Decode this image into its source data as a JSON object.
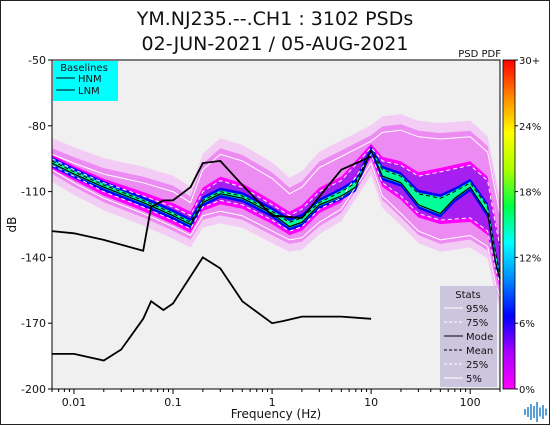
{
  "title_line1": "YM.NJ235.--.CH1 : 3102 PSDs",
  "title_line2": "02-JUN-2021 / 05-AUG-2021",
  "pdf_label": "PSD PDF",
  "colors": {
    "plot_background": "#f0f0f0",
    "baselines_box": "#00ffff",
    "stats_box": "#c8c0dc",
    "density_low": "#ff00ff",
    "density_mid": "#0000ff",
    "density_high": "#ff0000"
  },
  "baselines": {
    "title": "Baselines",
    "items": [
      "HNM",
      "LNM"
    ]
  },
  "stats": {
    "title": "Stats",
    "items": [
      "95%",
      "75%",
      "Mode",
      "Mean",
      "25%",
      "5%"
    ]
  },
  "colorbar": {
    "labels": [
      "30+",
      "24%",
      "18%",
      "12%",
      "6%",
      "0%"
    ],
    "stops": [
      "#ff00ff",
      "#aa00ff",
      "#0000ff",
      "#0088ff",
      "#00ffff",
      "#00ff44",
      "#aaff00",
      "#ffff00",
      "#ff8800",
      "#ff0000"
    ]
  },
  "chart_data": {
    "type": "line",
    "title": "YM.NJ235.--.CH1 : 3102 PSDs",
    "subtitle": "02-JUN-2021 / 05-AUG-2021",
    "xlabel": "Frequency (Hz)",
    "ylabel": "dB",
    "xscale": "log",
    "xlim": [
      0.006,
      200
    ],
    "ylim": [
      -200,
      -50
    ],
    "x_ticks": [
      0.01,
      0.1,
      1,
      10,
      100
    ],
    "x_tick_labels": [
      "0.01",
      "0.1",
      "1",
      "10",
      "100"
    ],
    "y_ticks": [
      -50,
      -80,
      -110,
      -140,
      -170,
      -200
    ],
    "y_tick_labels": [
      "-50",
      "-80",
      "-110",
      "-140",
      "-170",
      "-200"
    ],
    "grid": false,
    "legend_placement": "top-left",
    "series": [
      {
        "name": "HNM",
        "x": [
          0.006,
          0.01,
          0.02,
          0.05,
          0.06,
          0.08,
          0.1,
          0.15,
          0.2,
          0.3,
          0.5,
          1,
          2,
          5,
          10
        ],
        "y": [
          -128,
          -129,
          -132,
          -137,
          -117,
          -114,
          -114,
          -108,
          -97,
          -96,
          -107,
          -121,
          -122,
          -100,
          -94
        ]
      },
      {
        "name": "LNM",
        "x": [
          0.006,
          0.01,
          0.02,
          0.03,
          0.05,
          0.06,
          0.08,
          0.1,
          0.2,
          0.3,
          0.5,
          1,
          1.3,
          2,
          5,
          10
        ],
        "y": [
          -184,
          -184,
          -187,
          -182,
          -168,
          -160,
          -164,
          -161,
          -140,
          -145,
          -160,
          -170,
          -169,
          -167,
          -167,
          -168
        ]
      },
      {
        "name": "Mode",
        "x": [
          0.006,
          0.01,
          0.02,
          0.05,
          0.1,
          0.15,
          0.2,
          0.3,
          0.5,
          1,
          1.5,
          2,
          3,
          5,
          7,
          10,
          13,
          20,
          30,
          50,
          70,
          100,
          150,
          180,
          200
        ],
        "y": [
          -97,
          -102,
          -108,
          -115,
          -121,
          -125,
          -115,
          -111,
          -113,
          -120,
          -126,
          -124,
          -116,
          -112,
          -108,
          -91,
          -103,
          -106,
          -116,
          -120,
          -113,
          -108,
          -120,
          -142,
          -150
        ]
      },
      {
        "name": "Mean",
        "x": [
          0.006,
          0.01,
          0.02,
          0.05,
          0.1,
          0.15,
          0.2,
          0.3,
          0.5,
          1,
          1.5,
          2,
          3,
          5,
          7,
          10,
          13,
          20,
          30,
          50,
          70,
          100,
          150,
          180,
          200
        ],
        "y": [
          -96,
          -101,
          -107,
          -114,
          -120,
          -124,
          -114,
          -110,
          -112,
          -119,
          -124,
          -122,
          -115,
          -110,
          -106,
          -91,
          -100,
          -103,
          -111,
          -113,
          -110,
          -106,
          -117,
          -138,
          -148
        ]
      },
      {
        "name": "95%",
        "x": [
          0.006,
          0.01,
          0.02,
          0.05,
          0.1,
          0.15,
          0.2,
          0.3,
          0.5,
          1,
          1.5,
          2,
          3,
          5,
          10,
          13,
          20,
          30,
          50,
          100,
          150,
          180,
          200
        ],
        "y": [
          -93,
          -97,
          -102,
          -106,
          -110,
          -115,
          -100,
          -93,
          -96,
          -104,
          -111,
          -108,
          -99,
          -94,
          -87,
          -83,
          -82,
          -85,
          -86,
          -85,
          -92,
          -110,
          -120
        ]
      },
      {
        "name": "75%",
        "x": [
          0.006,
          0.01,
          0.02,
          0.05,
          0.1,
          0.15,
          0.2,
          0.3,
          0.5,
          1,
          1.5,
          2,
          3,
          5,
          10,
          13,
          20,
          30,
          50,
          100,
          150,
          180,
          200
        ],
        "y": [
          -95,
          -100,
          -106,
          -112,
          -117,
          -121,
          -110,
          -105,
          -108,
          -116,
          -121,
          -118,
          -110,
          -105,
          -90,
          -96,
          -98,
          -103,
          -101,
          -98,
          -105,
          -125,
          -135
        ]
      },
      {
        "name": "25%",
        "x": [
          0.006,
          0.01,
          0.02,
          0.05,
          0.1,
          0.15,
          0.2,
          0.3,
          0.5,
          1,
          1.5,
          2,
          3,
          5,
          10,
          13,
          20,
          30,
          50,
          100,
          150,
          180,
          200
        ],
        "y": [
          -98,
          -103,
          -110,
          -117,
          -123,
          -127,
          -117,
          -114,
          -116,
          -123,
          -128,
          -126,
          -118,
          -113,
          -93,
          -106,
          -112,
          -120,
          -123,
          -122,
          -128,
          -145,
          -152
        ]
      },
      {
        "name": "5%",
        "x": [
          0.006,
          0.01,
          0.02,
          0.05,
          0.1,
          0.15,
          0.2,
          0.3,
          0.5,
          1,
          1.5,
          2,
          3,
          5,
          10,
          13,
          20,
          30,
          50,
          100,
          150,
          180,
          200
        ],
        "y": [
          -100,
          -106,
          -113,
          -120,
          -126,
          -130,
          -121,
          -119,
          -121,
          -128,
          -132,
          -131,
          -124,
          -118,
          -97,
          -112,
          -120,
          -128,
          -132,
          -130,
          -135,
          -152,
          -158
        ]
      }
    ]
  }
}
